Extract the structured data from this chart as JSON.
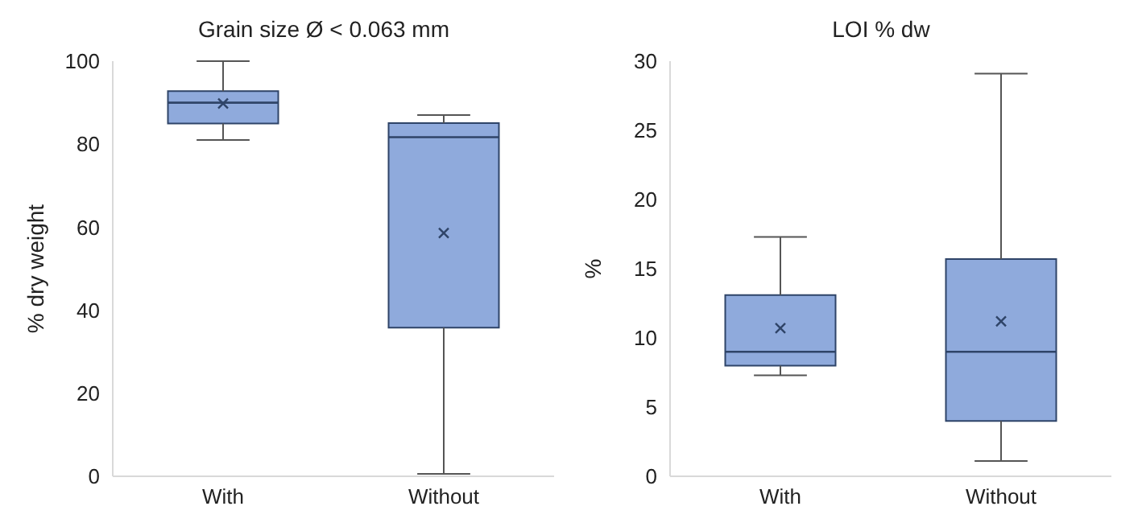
{
  "chart_data": [
    {
      "type": "box",
      "title": "Grain size Ø < 0.063 mm",
      "ylabel": "% dry weight",
      "categories": [
        "With",
        "Without"
      ],
      "color": "#8faadc",
      "ylim": [
        0,
        100
      ],
      "yticks": [
        0,
        20,
        40,
        60,
        80,
        100
      ],
      "grid": false,
      "legend": false,
      "boxes": [
        {
          "low": 81,
          "q1": 85,
          "median": 90,
          "q3": 92.8,
          "high": 100,
          "mean": 89.8
        },
        {
          "low": 0.6,
          "q1": 35.8,
          "median": 81.7,
          "q3": 85.1,
          "high": 87,
          "mean": 58.6
        }
      ]
    },
    {
      "type": "box",
      "title": "LOI % dw",
      "ylabel": "%",
      "categories": [
        "With",
        "Without"
      ],
      "color": "#8faadc",
      "ylim": [
        0,
        30
      ],
      "yticks": [
        0,
        5,
        10,
        15,
        20,
        25,
        30
      ],
      "grid": false,
      "legend": false,
      "boxes": [
        {
          "low": 7.3,
          "q1": 8,
          "median": 9,
          "q3": 13.1,
          "high": 17.3,
          "mean": 10.7
        },
        {
          "low": 1.1,
          "q1": 4,
          "median": 9,
          "q3": 15.7,
          "high": 29.1,
          "mean": 11.2
        }
      ]
    }
  ]
}
